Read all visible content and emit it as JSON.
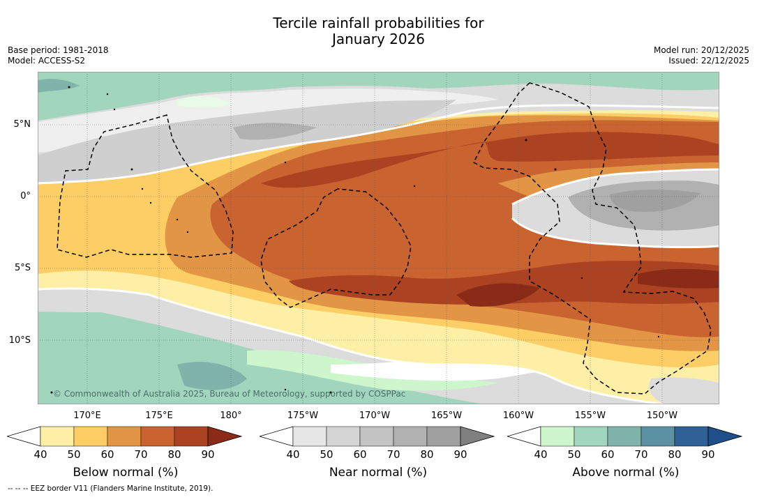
{
  "title": {
    "line1": "Tercile rainfall probabilities for",
    "line2": "January 2026"
  },
  "meta": {
    "base_period": "Base period: 1981-2018",
    "model": "Model: ACCESS-S2",
    "model_run": "Model run: 20/12/2025",
    "issued": "Issued: 22/12/2025"
  },
  "map": {
    "copyright": "© Commonwealth of Australia 2025, Bureau of Meteorology, supported by COSPPac",
    "lat_labels": [
      "5°N",
      "0°",
      "5°S",
      "10°S"
    ],
    "lon_labels": [
      "170°E",
      "175°E",
      "180°",
      "175°W",
      "170°W",
      "165°W",
      "160°W",
      "155°W",
      "150°W"
    ]
  },
  "colorbars": [
    {
      "title": "Below normal (%)",
      "ticks": [
        "40",
        "50",
        "60",
        "70",
        "80",
        "90"
      ],
      "colors": [
        "#ffffff",
        "#fdf0a6",
        "#fdcd66",
        "#e19545",
        "#c96431",
        "#ab4322",
        "#8a2b17"
      ]
    },
    {
      "title": "Near normal (%)",
      "ticks": [
        "40",
        "50",
        "60",
        "70",
        "80",
        "90"
      ],
      "colors": [
        "#ffffff",
        "#e6e6e6",
        "#d5d5d5",
        "#c3c3c3",
        "#b1b1b1",
        "#a0a0a0",
        "#808080"
      ]
    },
    {
      "title": "Above normal (%)",
      "ticks": [
        "40",
        "50",
        "60",
        "70",
        "80",
        "90"
      ],
      "colors": [
        "#ffffff",
        "#cdf6cd",
        "#a1d5bd",
        "#80b4aa",
        "#5b91a3",
        "#2f6096",
        "#1e4f88"
      ]
    }
  ],
  "footer": "--  --  -- EEZ border V11 (Flanders Marine Institute, 2019)."
}
